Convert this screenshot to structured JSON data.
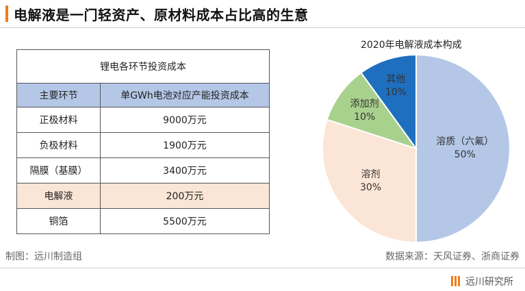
{
  "header": {
    "title": "电解液是一门轻资产、原材料成本占比高的生意"
  },
  "table": {
    "caption": "锂电各环节投资成本",
    "columns": [
      "主要环节",
      "单GWh电池对应产能投资成本"
    ],
    "rows": [
      {
        "name": "正极材料",
        "value": "9000万元"
      },
      {
        "name": "负极材料",
        "value": "1900万元"
      },
      {
        "name": "隔膜（基膜）",
        "value": "3400万元"
      },
      {
        "name": "电解液",
        "value": "200万元"
      },
      {
        "name": "铜箔",
        "value": "5500万元"
      }
    ]
  },
  "chart_data": {
    "type": "pie",
    "title": "2020年电解液成本构成",
    "slices": [
      {
        "label": "溶质（六氟）",
        "value": 50,
        "display": "50%",
        "color": "#b4c7e7"
      },
      {
        "label": "溶剂",
        "value": 30,
        "display": "30%",
        "color": "#fbe5d6"
      },
      {
        "label": "添加剂",
        "value": 10,
        "display": "10%",
        "color": "#a9d18e"
      },
      {
        "label": "其他",
        "value": 10,
        "display": "10%",
        "color": "#1f6fbf"
      }
    ]
  },
  "footer": {
    "source_left": "制图：远川制造组",
    "source_right": "数据来源：天风证券、浙商证券",
    "brand": "远川研究所",
    "brand_color": "#f07c1b"
  }
}
